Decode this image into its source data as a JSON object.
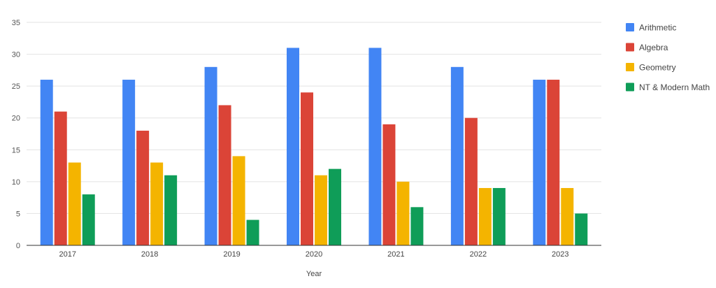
{
  "chart_data": {
    "type": "bar",
    "title": "",
    "xlabel": "Year",
    "ylabel": "",
    "ylim": [
      0,
      35
    ],
    "yticks": [
      0,
      5,
      10,
      15,
      20,
      25,
      30,
      35
    ],
    "grid": true,
    "legend_position": "right",
    "categories": [
      "2017",
      "2018",
      "2019",
      "2020",
      "2021",
      "2022",
      "2023"
    ],
    "series": [
      {
        "name": "Arithmetic",
        "color": "#4285f4",
        "values": [
          26,
          26,
          28,
          31,
          31,
          28,
          26
        ]
      },
      {
        "name": "Algebra",
        "color": "#db4437",
        "values": [
          21,
          18,
          22,
          24,
          19,
          20,
          26
        ]
      },
      {
        "name": "Geometry",
        "color": "#f4b400",
        "values": [
          13,
          13,
          14,
          11,
          10,
          9,
          9
        ]
      },
      {
        "name": "NT & Modern Math",
        "color": "#0f9d58",
        "values": [
          8,
          11,
          4,
          12,
          6,
          9,
          5
        ]
      }
    ]
  }
}
